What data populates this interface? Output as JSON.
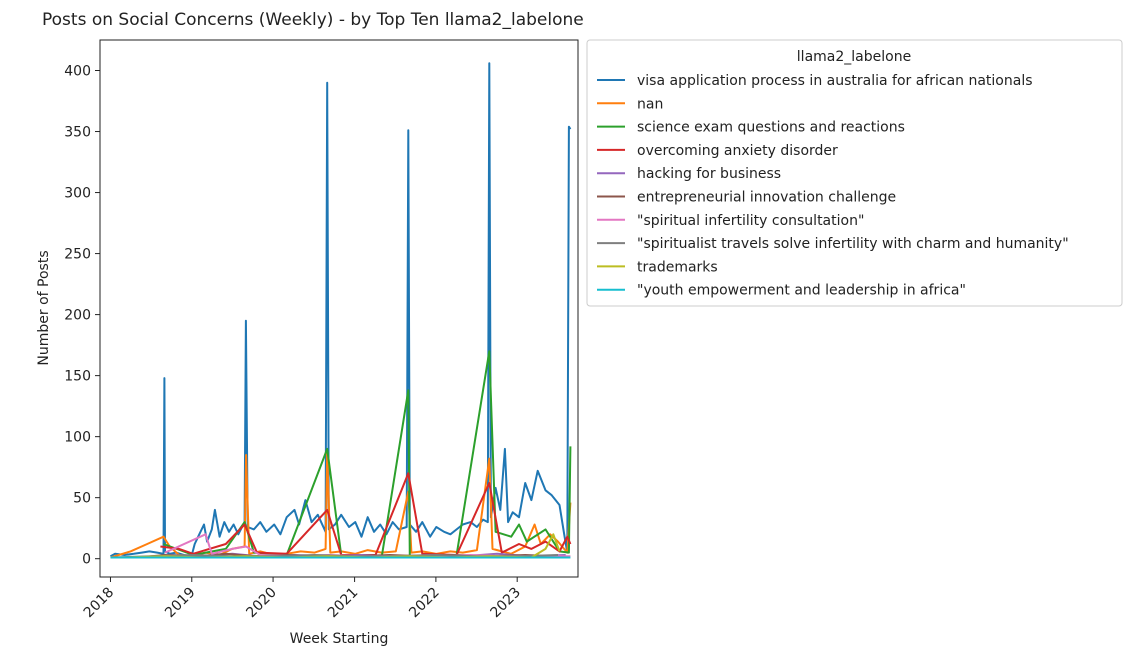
{
  "chart_data": {
    "type": "line",
    "title": "Posts on Social Concerns (Weekly) - by Top Ten llama2_labelone",
    "xlabel": "Week Starting",
    "ylabel": "Number of Posts",
    "xlim": [
      "2017-11-15",
      "2023-10-01"
    ],
    "ylim": [
      -15,
      425
    ],
    "x_ticks": [
      "2018",
      "2019",
      "2020",
      "2021",
      "2022",
      "2023"
    ],
    "y_ticks": [
      0,
      50,
      100,
      150,
      200,
      250,
      300,
      350,
      400
    ],
    "grid": false,
    "legend": {
      "title": "llama2_labelone",
      "placement": "outside-top-right"
    },
    "series": [
      {
        "name": "visa application process in australia for african nationals",
        "color": "#1f77b4",
        "points": [
          [
            "2018-01-01",
            2
          ],
          [
            "2018-01-22",
            4
          ],
          [
            "2018-03-05",
            3
          ],
          [
            "2018-04-16",
            4
          ],
          [
            "2018-05-21",
            5
          ],
          [
            "2018-06-25",
            6
          ],
          [
            "2018-07-30",
            5
          ],
          [
            "2018-08-27",
            4
          ],
          [
            "2018-08-31",
            148
          ],
          [
            "2018-09-03",
            6
          ],
          [
            "2018-09-24",
            4
          ],
          [
            "2018-10-22",
            5
          ],
          [
            "2018-11-26",
            3
          ],
          [
            "2018-12-31",
            2
          ],
          [
            "2019-01-14",
            12
          ],
          [
            "2019-02-04",
            20
          ],
          [
            "2019-02-25",
            28
          ],
          [
            "2019-03-11",
            14
          ],
          [
            "2019-04-01",
            24
          ],
          [
            "2019-04-15",
            40
          ],
          [
            "2019-05-06",
            18
          ],
          [
            "2019-05-27",
            30
          ],
          [
            "2019-06-17",
            22
          ],
          [
            "2019-07-08",
            28
          ],
          [
            "2019-07-29",
            20
          ],
          [
            "2019-08-26",
            30
          ],
          [
            "2019-09-01",
            195
          ],
          [
            "2019-09-09",
            26
          ],
          [
            "2019-10-07",
            24
          ],
          [
            "2019-11-04",
            30
          ],
          [
            "2019-12-02",
            22
          ],
          [
            "2020-01-06",
            28
          ],
          [
            "2020-02-03",
            20
          ],
          [
            "2020-03-02",
            34
          ],
          [
            "2020-04-06",
            40
          ],
          [
            "2020-04-27",
            28
          ],
          [
            "2020-05-25",
            48
          ],
          [
            "2020-06-22",
            30
          ],
          [
            "2020-07-20",
            36
          ],
          [
            "2020-08-24",
            22
          ],
          [
            "2020-08-31",
            390
          ],
          [
            "2020-09-07",
            24
          ],
          [
            "2020-10-05",
            28
          ],
          [
            "2020-11-02",
            36
          ],
          [
            "2020-12-07",
            26
          ],
          [
            "2021-01-04",
            30
          ],
          [
            "2021-02-01",
            18
          ],
          [
            "2021-03-01",
            34
          ],
          [
            "2021-03-29",
            22
          ],
          [
            "2021-04-26",
            28
          ],
          [
            "2021-05-24",
            20
          ],
          [
            "2021-06-21",
            30
          ],
          [
            "2021-07-19",
            24
          ],
          [
            "2021-08-23",
            26
          ],
          [
            "2021-08-30",
            351
          ],
          [
            "2021-09-06",
            28
          ],
          [
            "2021-10-04",
            22
          ],
          [
            "2021-11-01",
            30
          ],
          [
            "2021-12-06",
            18
          ],
          [
            "2022-01-03",
            26
          ],
          [
            "2022-02-07",
            22
          ],
          [
            "2022-03-07",
            20
          ],
          [
            "2022-04-04",
            24
          ],
          [
            "2022-05-02",
            28
          ],
          [
            "2022-06-06",
            30
          ],
          [
            "2022-07-04",
            26
          ],
          [
            "2022-08-01",
            32
          ],
          [
            "2022-08-22",
            30
          ],
          [
            "2022-08-29",
            406
          ],
          [
            "2022-09-05",
            34
          ],
          [
            "2022-09-26",
            58
          ],
          [
            "2022-10-17",
            40
          ],
          [
            "2022-11-07",
            90
          ],
          [
            "2022-11-21",
            30
          ],
          [
            "2022-12-12",
            38
          ],
          [
            "2023-01-09",
            34
          ],
          [
            "2023-02-06",
            62
          ],
          [
            "2023-03-06",
            48
          ],
          [
            "2023-04-03",
            72
          ],
          [
            "2023-05-08",
            56
          ],
          [
            "2023-06-05",
            52
          ],
          [
            "2023-07-10",
            44
          ],
          [
            "2023-07-31",
            20
          ],
          [
            "2023-08-14",
            5
          ],
          [
            "2023-08-21",
            354
          ],
          [
            "2023-08-28",
            352
          ]
        ]
      },
      {
        "name": "nan",
        "color": "#ff7f0e",
        "points": [
          [
            "2018-01-01",
            1
          ],
          [
            "2018-04-01",
            6
          ],
          [
            "2018-06-15",
            12
          ],
          [
            "2018-08-27",
            18
          ],
          [
            "2018-09-24",
            10
          ],
          [
            "2018-11-05",
            3
          ],
          [
            "2019-01-07",
            2
          ],
          [
            "2019-03-04",
            5
          ],
          [
            "2019-05-06",
            3
          ],
          [
            "2019-07-01",
            8
          ],
          [
            "2019-08-26",
            10
          ],
          [
            "2019-09-02",
            85
          ],
          [
            "2019-09-16",
            4
          ],
          [
            "2019-11-04",
            6
          ],
          [
            "2020-01-06",
            3
          ],
          [
            "2020-03-02",
            4
          ],
          [
            "2020-05-04",
            6
          ],
          [
            "2020-07-06",
            5
          ],
          [
            "2020-08-24",
            8
          ],
          [
            "2020-08-31",
            88
          ],
          [
            "2020-09-14",
            5
          ],
          [
            "2020-11-02",
            6
          ],
          [
            "2021-01-04",
            4
          ],
          [
            "2021-03-01",
            7
          ],
          [
            "2021-05-03",
            5
          ],
          [
            "2021-07-05",
            6
          ],
          [
            "2021-08-30",
            55
          ],
          [
            "2021-09-13",
            5
          ],
          [
            "2021-11-01",
            6
          ],
          [
            "2022-01-03",
            4
          ],
          [
            "2022-03-07",
            6
          ],
          [
            "2022-05-02",
            5
          ],
          [
            "2022-07-04",
            7
          ],
          [
            "2022-08-29",
            82
          ],
          [
            "2022-09-12",
            8
          ],
          [
            "2022-10-24",
            6
          ],
          [
            "2022-12-05",
            4
          ],
          [
            "2023-02-06",
            10
          ],
          [
            "2023-03-20",
            28
          ],
          [
            "2023-04-17",
            12
          ],
          [
            "2023-05-29",
            20
          ],
          [
            "2023-07-03",
            14
          ],
          [
            "2023-08-14",
            5
          ],
          [
            "2023-08-28",
            46
          ]
        ]
      },
      {
        "name": "science exam questions and reactions",
        "color": "#2ca02c",
        "points": [
          [
            "2018-08-27",
            12
          ],
          [
            "2019-01-07",
            3
          ],
          [
            "2019-06-03",
            8
          ],
          [
            "2019-08-26",
            30
          ],
          [
            "2019-10-07",
            5
          ],
          [
            "2020-03-02",
            3
          ],
          [
            "2020-08-31",
            90
          ],
          [
            "2020-11-02",
            3
          ],
          [
            "2021-05-03",
            2
          ],
          [
            "2021-08-30",
            138
          ],
          [
            "2021-09-06",
            2
          ],
          [
            "2022-04-04",
            3
          ],
          [
            "2022-08-29",
            170
          ],
          [
            "2022-09-26",
            22
          ],
          [
            "2022-12-05",
            18
          ],
          [
            "2023-01-09",
            28
          ],
          [
            "2023-02-13",
            14
          ],
          [
            "2023-05-08",
            24
          ],
          [
            "2023-07-10",
            6
          ],
          [
            "2023-08-21",
            5
          ],
          [
            "2023-08-28",
            92
          ]
        ]
      },
      {
        "name": "overcoming anxiety disorder",
        "color": "#d62728",
        "points": [
          [
            "2018-08-13",
            10
          ],
          [
            "2018-11-05",
            8
          ],
          [
            "2019-01-07",
            4
          ],
          [
            "2019-06-03",
            12
          ],
          [
            "2019-08-26",
            28
          ],
          [
            "2019-10-21",
            5
          ],
          [
            "2020-03-02",
            4
          ],
          [
            "2020-08-31",
            40
          ],
          [
            "2020-11-02",
            3
          ],
          [
            "2021-04-05",
            3
          ],
          [
            "2021-08-30",
            70
          ],
          [
            "2021-11-01",
            4
          ],
          [
            "2022-04-04",
            3
          ],
          [
            "2022-08-29",
            62
          ],
          [
            "2022-10-24",
            5
          ],
          [
            "2023-01-09",
            12
          ],
          [
            "2023-03-06",
            8
          ],
          [
            "2023-05-08",
            14
          ],
          [
            "2023-07-10",
            6
          ],
          [
            "2023-08-14",
            18
          ],
          [
            "2023-08-28",
            12
          ]
        ]
      },
      {
        "name": "hacking for business",
        "color": "#9467bd",
        "points": [
          [
            "2018-06-04",
            1
          ],
          [
            "2018-10-01",
            3
          ],
          [
            "2019-03-04",
            2
          ],
          [
            "2019-07-01",
            4
          ],
          [
            "2019-11-04",
            2
          ],
          [
            "2020-04-06",
            3
          ],
          [
            "2020-09-07",
            2
          ],
          [
            "2021-02-01",
            3
          ],
          [
            "2021-07-05",
            2
          ],
          [
            "2021-12-06",
            3
          ],
          [
            "2022-05-02",
            2
          ],
          [
            "2022-10-03",
            4
          ],
          [
            "2023-03-06",
            2
          ],
          [
            "2023-08-07",
            3
          ]
        ]
      },
      {
        "name": "entrepreneurial innovation challenge",
        "color": "#8c564b",
        "points": [
          [
            "2018-05-07",
            1
          ],
          [
            "2018-09-03",
            3
          ],
          [
            "2019-02-04",
            2
          ],
          [
            "2019-06-03",
            4
          ],
          [
            "2019-10-07",
            2
          ],
          [
            "2020-03-02",
            3
          ],
          [
            "2020-08-03",
            2
          ],
          [
            "2021-01-04",
            2
          ],
          [
            "2021-06-07",
            3
          ],
          [
            "2021-11-01",
            2
          ],
          [
            "2022-04-04",
            3
          ],
          [
            "2022-09-05",
            2
          ],
          [
            "2023-02-06",
            3
          ],
          [
            "2023-07-03",
            2
          ]
        ]
      },
      {
        "name": "\"spiritual infertility consultation\"",
        "color": "#e377c2",
        "points": [
          [
            "2018-09-03",
            5
          ],
          [
            "2019-03-04",
            20
          ],
          [
            "2019-04-01",
            4
          ],
          [
            "2019-07-01",
            8
          ],
          [
            "2019-09-02",
            10
          ],
          [
            "2019-11-04",
            3
          ],
          [
            "2020-04-06",
            2
          ],
          [
            "2020-09-07",
            3
          ],
          [
            "2021-02-01",
            2
          ],
          [
            "2021-07-05",
            2
          ],
          [
            "2022-01-03",
            2
          ],
          [
            "2022-06-06",
            3
          ],
          [
            "2022-11-07",
            2
          ],
          [
            "2023-04-03",
            2
          ],
          [
            "2023-08-28",
            2
          ]
        ]
      },
      {
        "name": "\"spiritualist travels solve infertility with charm and humanity\"",
        "color": "#7f7f7f",
        "points": [
          [
            "2018-01-01",
            1
          ],
          [
            "2018-07-02",
            2
          ],
          [
            "2019-01-07",
            3
          ],
          [
            "2019-07-01",
            2
          ],
          [
            "2020-01-06",
            2
          ],
          [
            "2020-07-06",
            3
          ],
          [
            "2021-01-04",
            2
          ],
          [
            "2021-07-05",
            2
          ],
          [
            "2022-01-03",
            3
          ],
          [
            "2022-07-04",
            2
          ],
          [
            "2023-01-09",
            2
          ],
          [
            "2023-07-03",
            3
          ]
        ]
      },
      {
        "name": "trademarks",
        "color": "#bcbd22",
        "points": [
          [
            "2018-03-05",
            1
          ],
          [
            "2018-09-03",
            2
          ],
          [
            "2019-03-04",
            1
          ],
          [
            "2019-09-02",
            2
          ],
          [
            "2020-03-02",
            1
          ],
          [
            "2020-09-07",
            2
          ],
          [
            "2021-03-01",
            1
          ],
          [
            "2021-09-06",
            2
          ],
          [
            "2022-03-07",
            1
          ],
          [
            "2022-09-05",
            2
          ],
          [
            "2023-03-06",
            1
          ],
          [
            "2023-05-08",
            8
          ],
          [
            "2023-06-12",
            20
          ],
          [
            "2023-07-10",
            6
          ]
        ]
      },
      {
        "name": "\"youth empowerment and leadership in africa\"",
        "color": "#17becf",
        "points": [
          [
            "2018-01-01",
            1
          ],
          [
            "2018-08-31",
            1
          ],
          [
            "2019-09-02",
            1
          ],
          [
            "2020-08-31",
            1
          ],
          [
            "2021-08-30",
            1
          ],
          [
            "2022-08-29",
            1
          ],
          [
            "2023-08-28",
            1
          ]
        ]
      }
    ]
  }
}
